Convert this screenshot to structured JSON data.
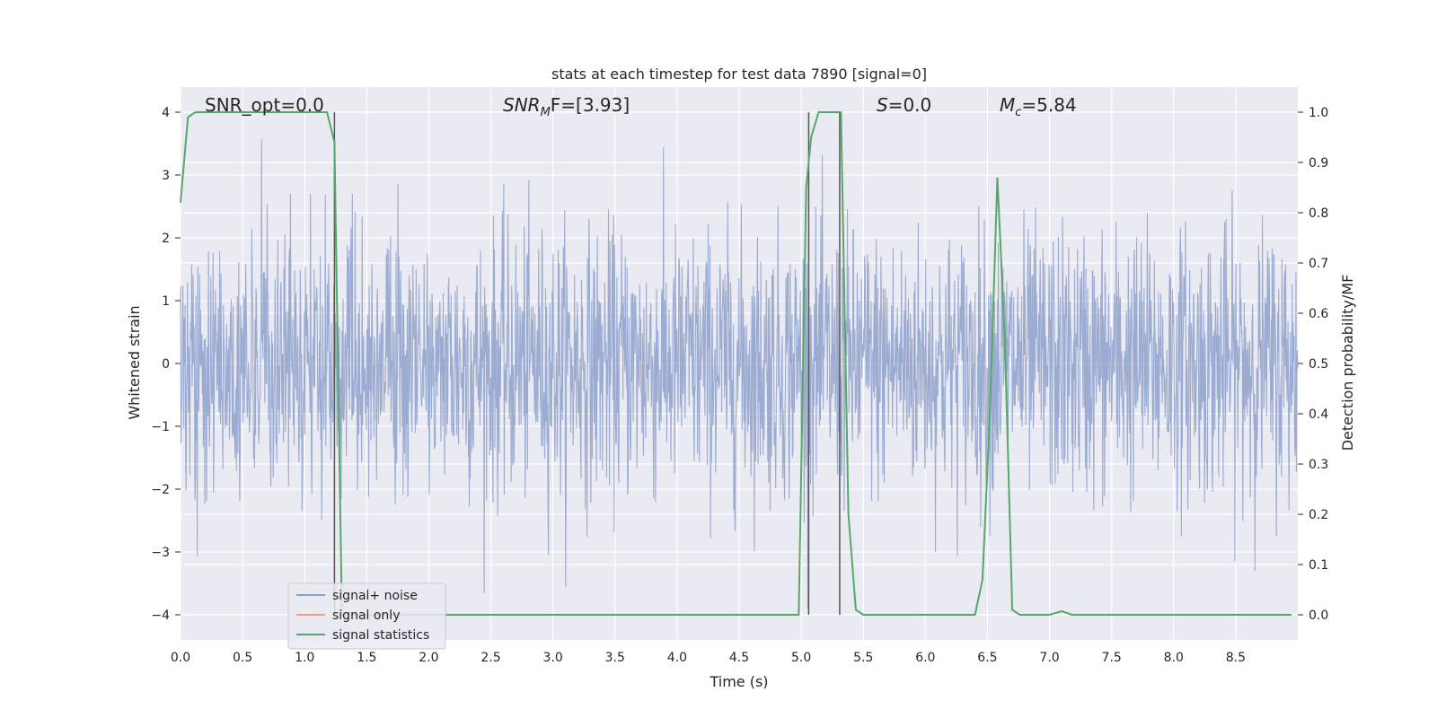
{
  "chart_data": {
    "type": "line",
    "title": "stats at each timestep for test data 7890 [signal=0]",
    "xlabel": "Time (s)",
    "ylabel_left": "Whitened strain",
    "ylabel_right": "Detection probability/MF",
    "xlim": [
      0,
      9.0
    ],
    "ylim_left": [
      -4.4,
      4.4
    ],
    "ylim_right": [
      -0.05,
      1.05
    ],
    "x_ticks": [
      0.0,
      0.5,
      1.0,
      1.5,
      2.0,
      2.5,
      3.0,
      3.5,
      4.0,
      4.5,
      5.0,
      5.5,
      6.0,
      6.5,
      7.0,
      7.5,
      8.0,
      8.5
    ],
    "x_tick_labels": [
      "0.0",
      "0.5",
      "1.0",
      "1.5",
      "2.0",
      "2.5",
      "3.0",
      "3.5",
      "4.0",
      "4.5",
      "5.0",
      "5.5",
      "6.0",
      "6.5",
      "7.0",
      "7.5",
      "8.0",
      "8.5"
    ],
    "y_left_ticks": [
      4,
      3,
      2,
      1,
      0,
      -1,
      -2,
      -3,
      -4
    ],
    "y_left_tick_labels": [
      "4",
      "3",
      "2",
      "1",
      "0",
      "−1",
      "−2",
      "−3",
      "−4"
    ],
    "y_right_ticks": [
      1.0,
      0.9,
      0.8,
      0.7,
      0.6,
      0.5,
      0.4,
      0.3,
      0.2,
      0.1,
      0.0
    ],
    "y_right_tick_labels": [
      "1.0",
      "0.9",
      "0.8",
      "0.7",
      "0.6",
      "0.5",
      "0.4",
      "0.3",
      "0.2",
      "0.1",
      "0.0"
    ],
    "grid": true,
    "legend_position": "lower-left",
    "annotations": {
      "snr_opt": "SNR_opt=0.0",
      "snr_mf_base": "SNR",
      "snr_mf_sub": "M",
      "snr_mf_rest": "F=[3.93]",
      "s_label": "S",
      "s_rest": "=0.0",
      "mc_base": "M",
      "mc_sub": "c",
      "mc_rest": "=5.84"
    },
    "series": [
      {
        "name": "signal+ noise",
        "color": "#8da0cb",
        "description_amplitude": [
          -3.9,
          4.0
        ]
      },
      {
        "name": "signal only",
        "color": "#e8a085",
        "values": []
      },
      {
        "name": "signal statistics",
        "color": "#55a868",
        "x": [
          0.0,
          0.06,
          0.12,
          0.2,
          0.4,
          0.6,
          0.8,
          1.0,
          1.18,
          1.24,
          1.3,
          1.36,
          1.5,
          2.0,
          3.0,
          4.0,
          4.5,
          4.98,
          5.04,
          5.08,
          5.14,
          5.2,
          5.26,
          5.32,
          5.38,
          5.44,
          5.5,
          5.6,
          6.0,
          6.4,
          6.46,
          6.52,
          6.58,
          6.64,
          6.7,
          6.76,
          7.0,
          7.1,
          7.18,
          7.5,
          8.0,
          8.5,
          8.95
        ],
        "y": [
          0.82,
          0.99,
          1.0,
          1.0,
          1.0,
          1.0,
          1.0,
          1.0,
          1.0,
          0.94,
          0.0,
          0.0,
          0.0,
          0.0,
          0.0,
          0.0,
          0.0,
          0.0,
          0.85,
          0.95,
          1.0,
          1.0,
          1.0,
          1.0,
          0.2,
          0.01,
          0.0,
          0.0,
          0.0,
          0.0,
          0.07,
          0.4,
          0.87,
          0.55,
          0.01,
          0.0,
          0.0,
          0.007,
          0.0,
          0.0,
          0.0,
          0.0,
          0.0
        ]
      }
    ],
    "vertical_markers_x": [
      1.24,
      5.06,
      5.31
    ]
  }
}
